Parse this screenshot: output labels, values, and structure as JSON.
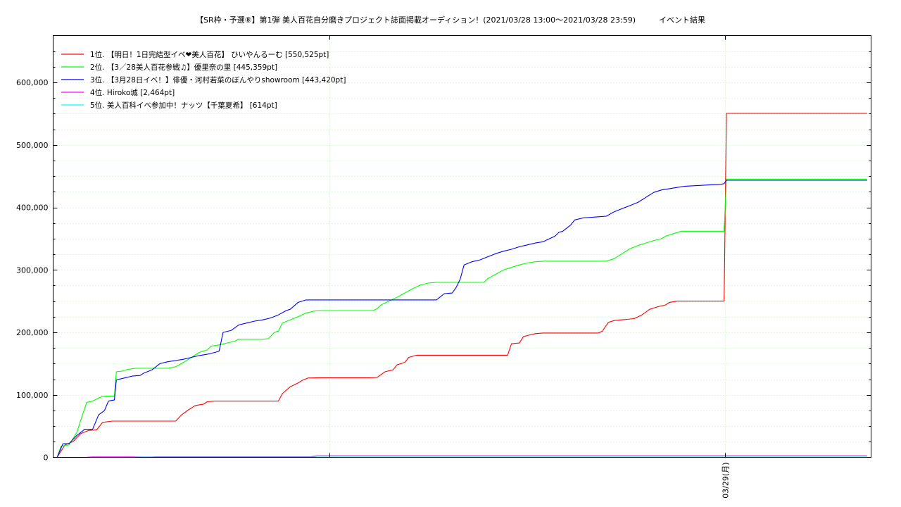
{
  "chart_data": {
    "type": "line",
    "title": "【SR枠・予選⑧】第1弾 美人百花自分磨きプロジェクト誌面掲載オーディション！(2021/03/28 13:00〜2021/03/28 23:59)　　　イベント結果",
    "xlabel": "",
    "ylabel": "",
    "x_ticks": [
      {
        "x": 0.6,
        "label": ""
      },
      {
        "x": 1.6,
        "label": "03/29(月)"
      }
    ],
    "xlim": [
      -0.1,
      1.97
    ],
    "ylim": [
      0,
      675000
    ],
    "y_ticks": [
      0,
      100000,
      200000,
      300000,
      400000,
      500000,
      600000
    ],
    "y_tick_labels": [
      "0",
      "100,000",
      "200,000",
      "300,000",
      "400,000",
      "500,000",
      "600,000"
    ],
    "grid": true,
    "legend_position": "top-left",
    "series": [
      {
        "name": "1位. 【明日！1日完結型イベ❤美人百花】 ひいやんるーむ [550,525pt]",
        "color": "#ff0000",
        "points": [
          [
            -0.09,
            0
          ],
          [
            -0.07,
            20000
          ],
          [
            -0.05,
            25000
          ],
          [
            -0.03,
            38000
          ],
          [
            -0.01,
            43000
          ],
          [
            0.01,
            44000
          ],
          [
            0.025,
            56000
          ],
          [
            0.05,
            58000
          ],
          [
            0.08,
            58000
          ],
          [
            0.2,
            58000
          ],
          [
            0.21,
            58000
          ],
          [
            0.225,
            68000
          ],
          [
            0.24,
            75000
          ],
          [
            0.26,
            83000
          ],
          [
            0.28,
            85000
          ],
          [
            0.29,
            89000
          ],
          [
            0.31,
            90000
          ],
          [
            0.45,
            90000
          ],
          [
            0.47,
            90000
          ],
          [
            0.48,
            102000
          ],
          [
            0.5,
            113000
          ],
          [
            0.52,
            119000
          ],
          [
            0.53,
            123000
          ],
          [
            0.545,
            127000
          ],
          [
            0.58,
            127500
          ],
          [
            0.7,
            127500
          ],
          [
            0.72,
            128000
          ],
          [
            0.74,
            137000
          ],
          [
            0.76,
            140000
          ],
          [
            0.77,
            148000
          ],
          [
            0.79,
            152000
          ],
          [
            0.8,
            160000
          ],
          [
            0.82,
            163500
          ],
          [
            0.92,
            163500
          ],
          [
            1.05,
            163500
          ],
          [
            1.06,
            182000
          ],
          [
            1.08,
            183000
          ],
          [
            1.09,
            193000
          ],
          [
            1.1,
            195000
          ],
          [
            1.12,
            198000
          ],
          [
            1.14,
            199000
          ],
          [
            1.28,
            199000
          ],
          [
            1.29,
            202000
          ],
          [
            1.305,
            216000
          ],
          [
            1.32,
            219000
          ],
          [
            1.37,
            222000
          ],
          [
            1.39,
            228000
          ],
          [
            1.41,
            237000
          ],
          [
            1.43,
            241000
          ],
          [
            1.45,
            244000
          ],
          [
            1.46,
            248000
          ],
          [
            1.48,
            250000
          ],
          [
            1.59,
            250000
          ],
          [
            1.598,
            250000
          ],
          [
            1.604,
            550525
          ],
          [
            1.65,
            550525
          ],
          [
            1.96,
            550525
          ]
        ]
      },
      {
        "name": "2位. 【3／28美人百花参戦♫】優里奈の里 [445,359pt]",
        "color": "#00ff00",
        "points": [
          [
            -0.09,
            0
          ],
          [
            -0.08,
            18000
          ],
          [
            -0.06,
            20000
          ],
          [
            -0.04,
            40000
          ],
          [
            -0.03,
            60000
          ],
          [
            -0.015,
            88000
          ],
          [
            0.0,
            90000
          ],
          [
            0.015,
            95000
          ],
          [
            0.03,
            98000
          ],
          [
            0.055,
            98000
          ],
          [
            0.06,
            137000
          ],
          [
            0.075,
            138000
          ],
          [
            0.09,
            141000
          ],
          [
            0.11,
            142500
          ],
          [
            0.19,
            142500
          ],
          [
            0.21,
            145000
          ],
          [
            0.23,
            152000
          ],
          [
            0.25,
            160000
          ],
          [
            0.27,
            168000
          ],
          [
            0.29,
            172000
          ],
          [
            0.3,
            178000
          ],
          [
            0.32,
            180000
          ],
          [
            0.34,
            183000
          ],
          [
            0.36,
            186000
          ],
          [
            0.37,
            189000
          ],
          [
            0.43,
            189000
          ],
          [
            0.445,
            190000
          ],
          [
            0.46,
            200000
          ],
          [
            0.47,
            202000
          ],
          [
            0.48,
            215000
          ],
          [
            0.5,
            220000
          ],
          [
            0.52,
            225000
          ],
          [
            0.54,
            231000
          ],
          [
            0.56,
            234000
          ],
          [
            0.58,
            235000
          ],
          [
            0.71,
            235000
          ],
          [
            0.72,
            238000
          ],
          [
            0.73,
            244000
          ],
          [
            0.75,
            250000
          ],
          [
            0.77,
            256000
          ],
          [
            0.79,
            263000
          ],
          [
            0.81,
            270000
          ],
          [
            0.83,
            276000
          ],
          [
            0.85,
            279000
          ],
          [
            0.87,
            280000
          ],
          [
            0.97,
            280000
          ],
          [
            0.99,
            280000
          ],
          [
            1.0,
            286000
          ],
          [
            1.02,
            293000
          ],
          [
            1.04,
            300000
          ],
          [
            1.06,
            304000
          ],
          [
            1.08,
            308000
          ],
          [
            1.1,
            311000
          ],
          [
            1.12,
            313000
          ],
          [
            1.14,
            314000
          ],
          [
            1.3,
            314000
          ],
          [
            1.32,
            318000
          ],
          [
            1.34,
            326000
          ],
          [
            1.36,
            334000
          ],
          [
            1.38,
            339000
          ],
          [
            1.4,
            343000
          ],
          [
            1.42,
            347000
          ],
          [
            1.44,
            350000
          ],
          [
            1.45,
            354000
          ],
          [
            1.47,
            358000
          ],
          [
            1.49,
            362000
          ],
          [
            1.59,
            362000
          ],
          [
            1.598,
            362000
          ],
          [
            1.604,
            445359
          ],
          [
            1.65,
            445359
          ],
          [
            1.96,
            445359
          ]
        ]
      },
      {
        "name": "3位. 【3月28日イベ！】俳優・河村若菜のぼんやりshowroom [443,420pt]",
        "color": "#0000ff",
        "points": [
          [
            -0.09,
            0
          ],
          [
            -0.075,
            22000
          ],
          [
            -0.06,
            22000
          ],
          [
            -0.04,
            35000
          ],
          [
            -0.02,
            45000
          ],
          [
            0.0,
            45000
          ],
          [
            0.015,
            68000
          ],
          [
            0.03,
            75000
          ],
          [
            0.04,
            90000
          ],
          [
            0.055,
            92000
          ],
          [
            0.06,
            124000
          ],
          [
            0.08,
            127000
          ],
          [
            0.1,
            130000
          ],
          [
            0.12,
            131000
          ],
          [
            0.13,
            135000
          ],
          [
            0.15,
            140000
          ],
          [
            0.17,
            150000
          ],
          [
            0.19,
            153000
          ],
          [
            0.21,
            155000
          ],
          [
            0.23,
            157000
          ],
          [
            0.25,
            160000
          ],
          [
            0.27,
            163000
          ],
          [
            0.29,
            165000
          ],
          [
            0.31,
            168000
          ],
          [
            0.32,
            170000
          ],
          [
            0.33,
            200000
          ],
          [
            0.35,
            203000
          ],
          [
            0.37,
            212000
          ],
          [
            0.39,
            215000
          ],
          [
            0.41,
            218000
          ],
          [
            0.43,
            220000
          ],
          [
            0.45,
            223000
          ],
          [
            0.47,
            228000
          ],
          [
            0.49,
            235000
          ],
          [
            0.5,
            237000
          ],
          [
            0.52,
            248000
          ],
          [
            0.54,
            252000
          ],
          [
            0.87,
            252000
          ],
          [
            0.89,
            262000
          ],
          [
            0.91,
            263000
          ],
          [
            0.92,
            272000
          ],
          [
            0.93,
            285000
          ],
          [
            0.94,
            308000
          ],
          [
            0.96,
            313000
          ],
          [
            0.98,
            316000
          ],
          [
            1.0,
            321000
          ],
          [
            1.02,
            326000
          ],
          [
            1.04,
            330000
          ],
          [
            1.06,
            333000
          ],
          [
            1.08,
            337000
          ],
          [
            1.1,
            340000
          ],
          [
            1.12,
            343000
          ],
          [
            1.14,
            345000
          ],
          [
            1.16,
            351000
          ],
          [
            1.17,
            354000
          ],
          [
            1.18,
            360000
          ],
          [
            1.19,
            362000
          ],
          [
            1.21,
            372000
          ],
          [
            1.22,
            380000
          ],
          [
            1.24,
            383000
          ],
          [
            1.26,
            384000
          ],
          [
            1.28,
            385000
          ],
          [
            1.3,
            386000
          ],
          [
            1.32,
            393000
          ],
          [
            1.34,
            398000
          ],
          [
            1.36,
            403000
          ],
          [
            1.38,
            408000
          ],
          [
            1.4,
            416000
          ],
          [
            1.42,
            424000
          ],
          [
            1.44,
            428000
          ],
          [
            1.46,
            430000
          ],
          [
            1.48,
            432000
          ],
          [
            1.5,
            434000
          ],
          [
            1.59,
            437000
          ],
          [
            1.598,
            438000
          ],
          [
            1.604,
            443420
          ],
          [
            1.65,
            443420
          ],
          [
            1.96,
            443420
          ]
        ]
      },
      {
        "name": "4位. Hiroko城 [2,464pt]",
        "color": "#ff00ff",
        "points": [
          [
            -0.09,
            0
          ],
          [
            -0.02,
            0
          ],
          [
            0.0,
            800
          ],
          [
            0.15,
            800
          ],
          [
            0.16,
            1000
          ],
          [
            0.55,
            1000
          ],
          [
            0.57,
            2464
          ],
          [
            1.96,
            2464
          ]
        ]
      },
      {
        "name": "5位. 美人百科イベ参加中！ナッツ【千葉夏希】 [614pt]",
        "color": "#00ffff",
        "points": [
          [
            -0.09,
            0
          ],
          [
            0.1,
            0
          ],
          [
            0.12,
            614
          ],
          [
            1.96,
            614
          ]
        ]
      }
    ]
  }
}
